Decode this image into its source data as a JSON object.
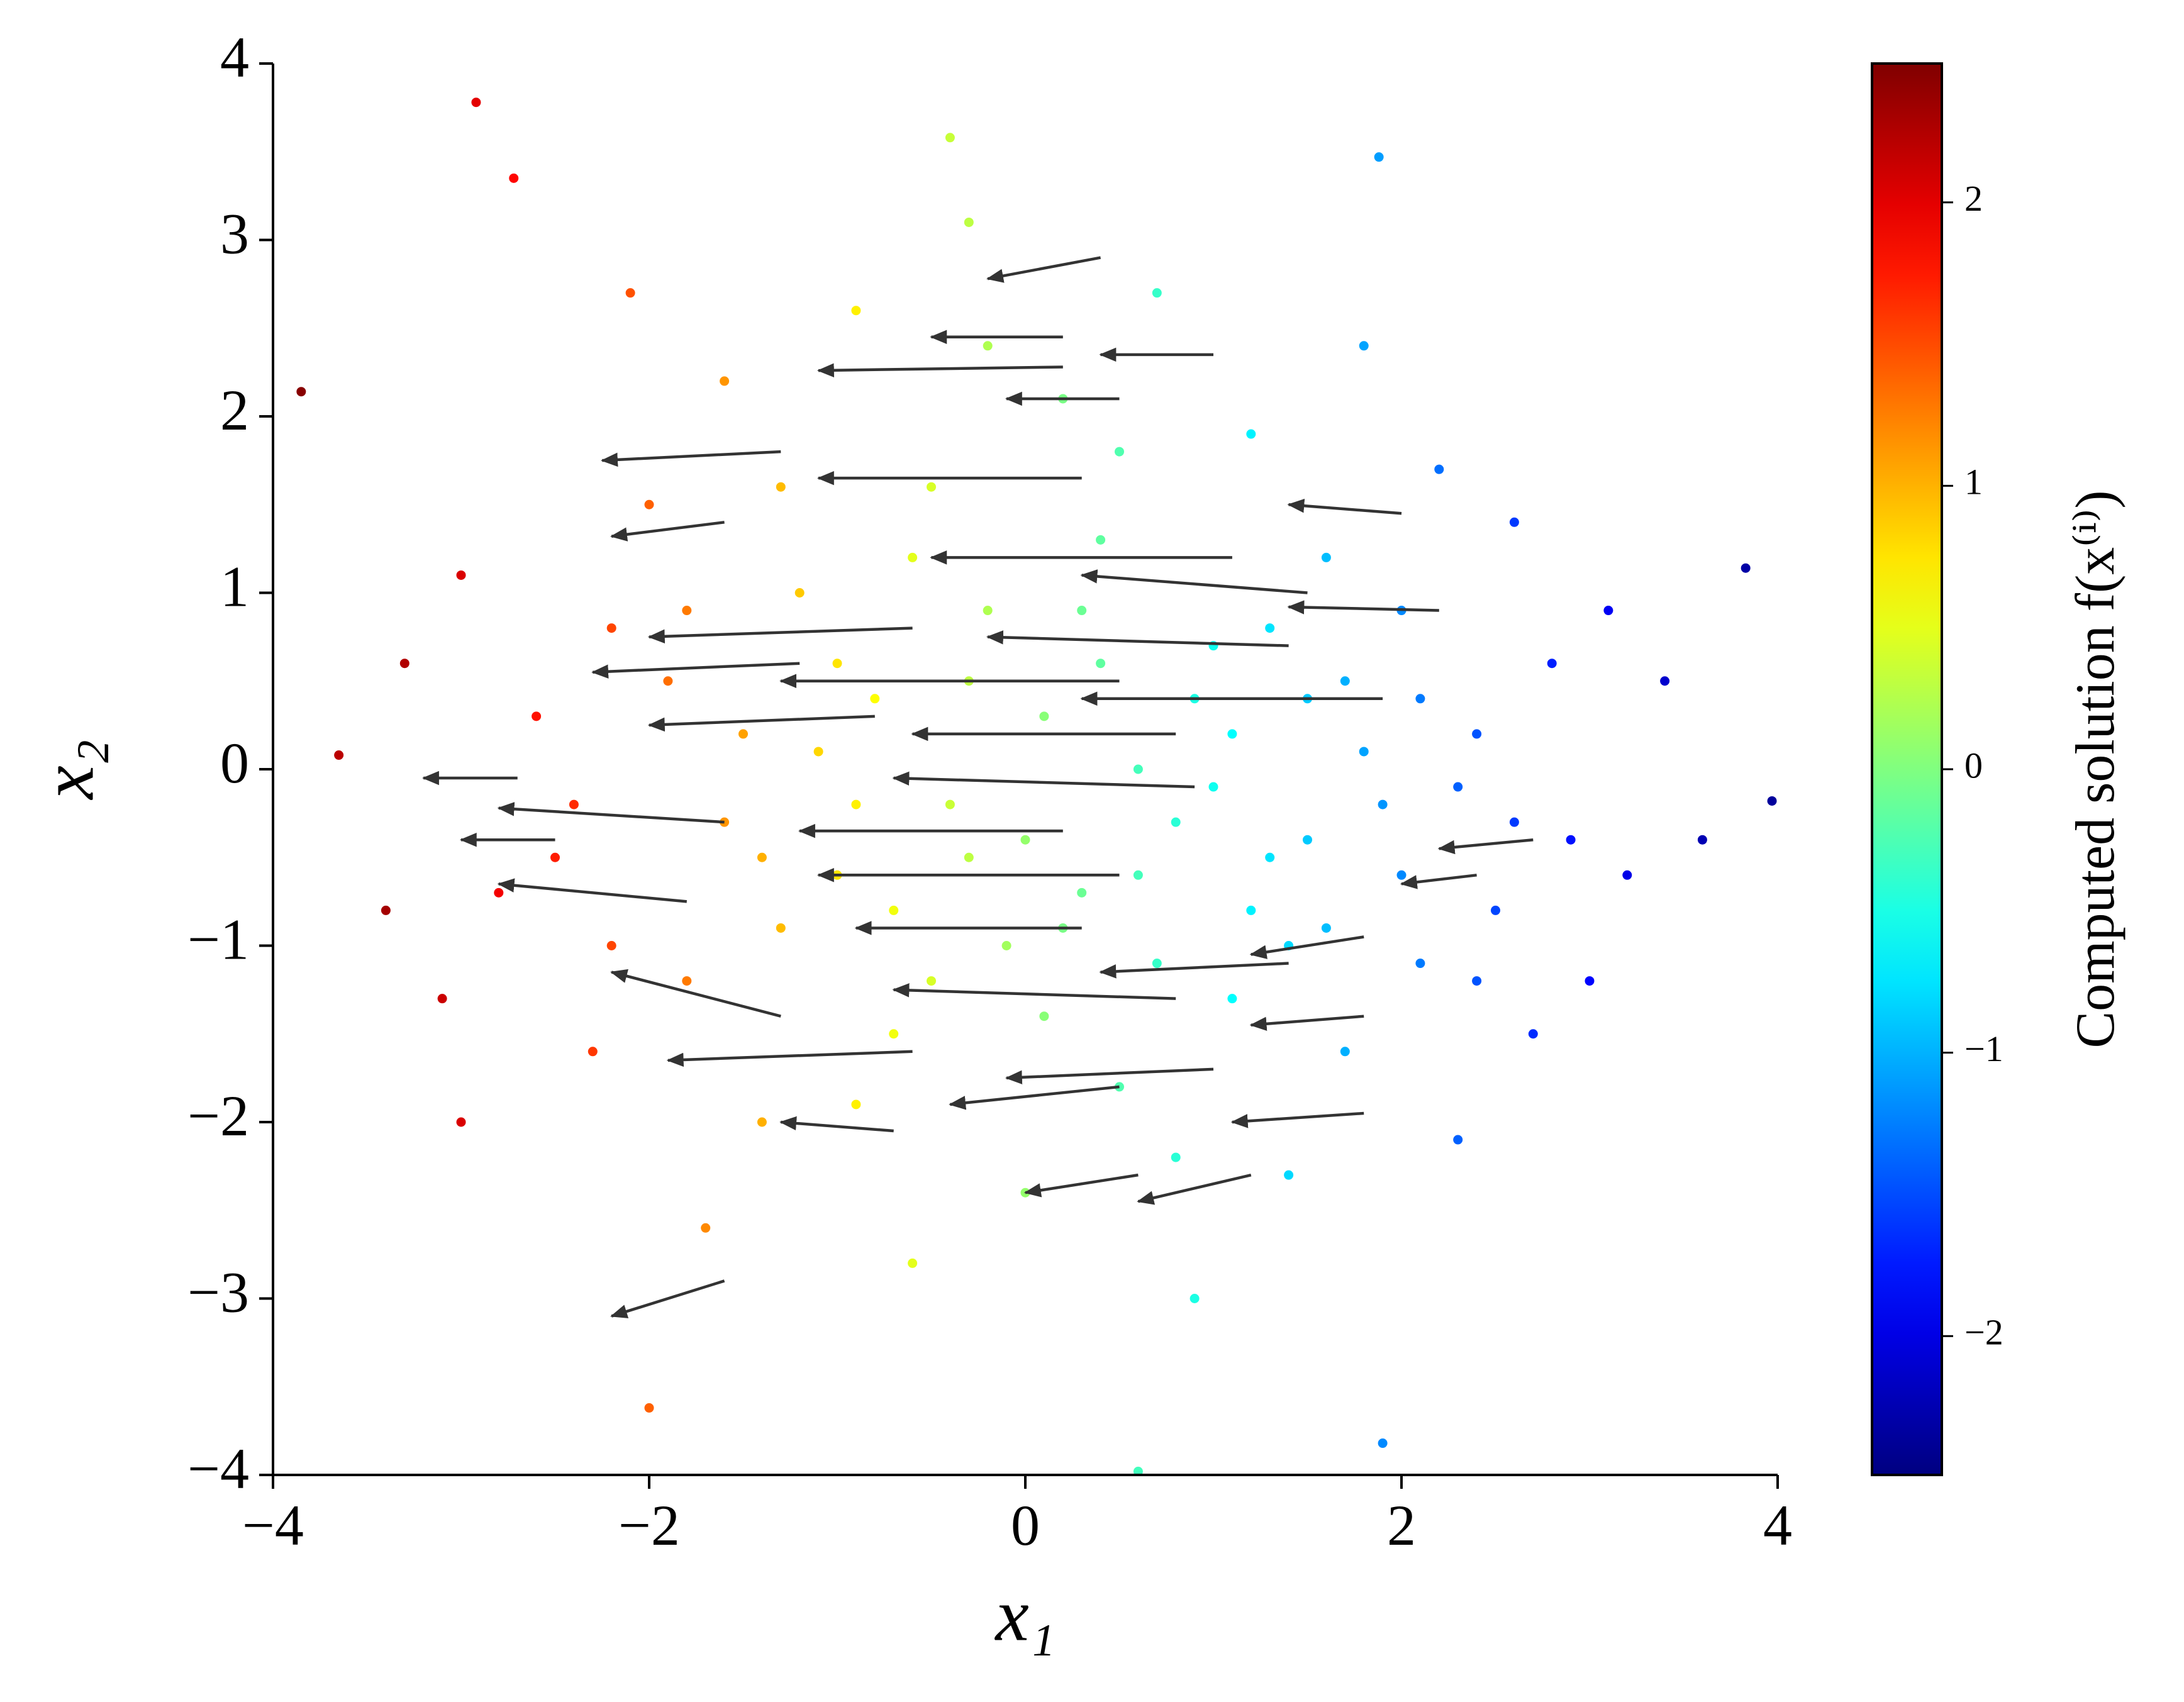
{
  "chart_data": {
    "type": "scatter-quiver",
    "xlabel": "x₁",
    "ylabel": "x₂",
    "colorbar_label": "Computed solution f(x⁽ⁱ⁾)",
    "colormap": "jet",
    "point_color_range": [
      -2.49,
      2.49
    ],
    "xlim": [
      -4,
      4
    ],
    "ylim": [
      -4,
      4
    ],
    "xticks": [
      {
        "value": -4,
        "label": "−4"
      },
      {
        "value": -2,
        "label": "−2"
      },
      0,
      2,
      4
    ],
    "yticks": [
      {
        "value": -4,
        "label": "−4"
      },
      {
        "value": -3,
        "label": "−3"
      },
      {
        "value": -2,
        "label": "−2"
      },
      {
        "value": -1,
        "label": "−1"
      },
      0,
      1,
      2,
      3,
      4
    ],
    "cticks": [
      {
        "value": -2,
        "label": "−2"
      },
      {
        "value": -1,
        "label": "−1"
      },
      0,
      1,
      2
    ],
    "points": {
      "x": [
        -3.85,
        -2.92,
        -2.72,
        3.97,
        3.83,
        -3.65,
        1.9,
        0.6,
        1.88,
        -0.4,
        -2.0,
        -2.5,
        -2.2,
        -2.0,
        -1.8,
        -1.6,
        -1.5,
        -1.4,
        -1.2,
        -1.0,
        -0.9,
        -0.8,
        -0.7,
        -0.6,
        -0.5,
        -0.4,
        -0.3,
        -0.2,
        -0.1,
        0.0,
        0.1,
        0.2,
        0.3,
        0.4,
        0.5,
        0.6,
        0.7,
        0.8,
        0.9,
        1.0,
        1.1,
        1.2,
        1.3,
        1.4,
        1.5,
        1.6,
        1.7,
        1.8,
        1.9,
        2.0,
        2.1,
        2.2,
        2.3,
        2.4,
        2.5,
        2.6,
        2.7,
        2.8,
        2.9,
        3.0,
        3.1,
        3.2,
        3.4,
        3.6,
        -2.6,
        -2.8,
        -3.0,
        -3.1,
        -3.3,
        -3.4,
        -3.0,
        -2.3,
        -2.1,
        -1.7,
        -1.3,
        -1.1,
        -0.9,
        -0.6,
        -0.3,
        0.1,
        0.4,
        0.7,
        1.0,
        1.3,
        1.6,
        -1.9,
        -1.6,
        -1.3,
        -0.9,
        -0.5,
        -0.2,
        0.2,
        0.5,
        0.8,
        1.1,
        1.4,
        1.7,
        2.0,
        2.3,
        2.6,
        -2.4,
        -2.2,
        -1.8,
        -1.4,
        -1.0,
        -0.7,
        -0.3,
        0.0,
        0.3,
        0.6,
        0.9,
        1.2,
        1.5,
        1.8,
        2.1,
        2.4
      ],
      "y": [
        2.14,
        3.78,
        3.35,
        -0.18,
        1.14,
        0.08,
        -3.82,
        -3.98,
        3.47,
        3.58,
        -3.62,
        -0.5,
        0.8,
        1.5,
        -1.2,
        2.2,
        0.2,
        -2.0,
        1.0,
        -0.6,
        2.6,
        0.4,
        -1.5,
        -2.8,
        1.6,
        -0.2,
        3.1,
        0.9,
        -1.0,
        -2.4,
        0.3,
        2.1,
        -0.7,
        1.3,
        -1.8,
        0.0,
        2.7,
        -0.3,
        -3.0,
        0.7,
        -1.3,
        1.9,
        -0.5,
        -2.3,
        0.4,
        1.2,
        -1.6,
        2.4,
        -0.2,
        0.9,
        -1.1,
        1.7,
        -2.1,
        0.2,
        -0.8,
        1.4,
        -1.5,
        0.6,
        -0.4,
        -1.2,
        0.9,
        -0.6,
        0.5,
        -0.4,
        0.3,
        -0.7,
        1.1,
        -1.3,
        0.6,
        -0.8,
        -2.0,
        -1.6,
        2.7,
        -2.6,
        -0.9,
        0.1,
        -1.9,
        1.2,
        -0.5,
        -1.4,
        0.6,
        -1.1,
        -0.1,
        0.8,
        -0.9,
        0.5,
        -0.3,
        1.6,
        -0.2,
        -1.2,
        2.4,
        -0.9,
        1.8,
        -2.2,
        0.2,
        -1.0,
        0.5,
        -0.6,
        -0.1,
        -0.3,
        -0.2,
        -1.0,
        0.9,
        -0.5,
        0.6,
        -0.8,
        0.5,
        -0.4,
        0.9,
        -0.6,
        0.4,
        -0.8,
        -0.4,
        0.1,
        0.4,
        -1.2
      ],
      "c": [
        2.45,
        2.0,
        1.85,
        -2.35,
        -2.3,
        2.2,
        -1.2,
        -0.3,
        -1.1,
        0.35,
        1.4,
        1.73,
        1.53,
        1.4,
        1.27,
        1.14,
        1.08,
        1.01,
        0.88,
        0.75,
        0.69,
        0.62,
        0.56,
        0.49,
        0.43,
        0.36,
        0.3,
        0.23,
        0.17,
        0.1,
        0.04,
        -0.03,
        -0.1,
        -0.16,
        -0.23,
        -0.29,
        -0.36,
        -0.42,
        -0.49,
        -0.55,
        -0.62,
        -0.68,
        -0.75,
        -0.81,
        -0.88,
        -0.94,
        -1.01,
        -1.07,
        -1.14,
        -1.2,
        -1.27,
        -1.33,
        -1.4,
        -1.46,
        -1.53,
        -1.59,
        -1.66,
        -1.72,
        -1.79,
        -1.85,
        -1.92,
        -1.98,
        -2.11,
        -2.24,
        1.79,
        1.92,
        2.05,
        2.12,
        2.25,
        2.31,
        2.05,
        1.6,
        1.47,
        1.2,
        0.95,
        0.82,
        0.69,
        0.49,
        0.3,
        0.04,
        -0.16,
        -0.36,
        -0.55,
        -0.75,
        -0.94,
        1.33,
        1.14,
        0.95,
        0.69,
        0.43,
        0.23,
        -0.03,
        -0.23,
        -0.42,
        -0.62,
        -0.81,
        -1.01,
        -1.2,
        -1.4,
        -1.59,
        1.66,
        1.53,
        1.27,
        1.01,
        0.75,
        0.56,
        0.3,
        0.1,
        -0.1,
        -0.29,
        -0.49,
        -0.68,
        -0.88,
        -1.07,
        -1.27,
        -1.46
      ]
    },
    "arrows": {
      "x": [
        0.4,
        0.2,
        1.0,
        0.2,
        0.5,
        -1.3,
        0.3,
        2.0,
        -1.6,
        1.1,
        1.5,
        2.2,
        -0.6,
        1.4,
        -1.2,
        0.5,
        1.9,
        -0.8,
        0.8,
        -2.7,
        0.9,
        -1.6,
        0.2,
        -2.5,
        2.7,
        0.5,
        -1.8,
        2.4,
        0.3,
        1.8,
        -1.3,
        1.4,
        0.8,
        1.8,
        -0.6,
        1.0,
        0.5,
        -0.7,
        1.8,
        1.2,
        0.6,
        -1.6
      ],
      "y": [
        2.9,
        2.45,
        2.35,
        2.28,
        2.1,
        1.8,
        1.65,
        1.45,
        1.4,
        1.2,
        1.0,
        0.9,
        0.8,
        0.7,
        0.6,
        0.5,
        0.4,
        0.3,
        0.2,
        -0.05,
        -0.1,
        -0.3,
        -0.35,
        -0.4,
        -0.4,
        -0.6,
        -0.75,
        -0.6,
        -0.9,
        -0.95,
        -1.4,
        -1.1,
        -1.3,
        -1.4,
        -1.6,
        -1.7,
        -1.8,
        -2.05,
        -1.95,
        -2.3,
        -2.3,
        -2.9
      ],
      "u": [
        -0.6,
        -0.7,
        -0.6,
        -1.3,
        -0.6,
        -0.95,
        -1.4,
        -0.6,
        -0.6,
        -1.6,
        -1.2,
        -0.8,
        -1.4,
        -1.6,
        -1.1,
        -1.8,
        -1.6,
        -1.2,
        -1.4,
        -0.5,
        -1.6,
        -1.2,
        -1.4,
        -0.5,
        -0.5,
        -1.6,
        -1.0,
        -0.4,
        -1.2,
        -0.6,
        -0.9,
        -1.0,
        -1.5,
        -0.6,
        -1.3,
        -1.1,
        -0.9,
        -0.6,
        -0.7,
        -0.6,
        -0.6,
        -0.6
      ],
      "v": [
        -0.12,
        0,
        0,
        -0.02,
        0,
        -0.05,
        0,
        0.05,
        -0.08,
        0,
        0.1,
        0.02,
        -0.05,
        0.05,
        -0.05,
        0,
        0,
        -0.05,
        0,
        0,
        0.05,
        0.08,
        0,
        0,
        -0.05,
        0,
        0.1,
        -0.05,
        0,
        -0.1,
        0.25,
        -0.05,
        0.05,
        -0.05,
        -0.05,
        -0.05,
        -0.1,
        0.05,
        -0.05,
        -0.15,
        -0.1,
        -0.2
      ]
    }
  }
}
